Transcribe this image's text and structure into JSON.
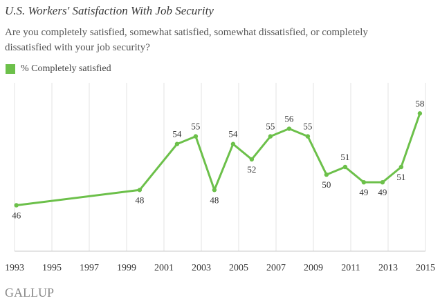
{
  "header": {
    "title": "U.S. Workers' Satisfaction With Job Security",
    "subtitle": "Are you completely satisfied, somewhat satisfied, somewhat dissatisfied, or completely dissatisfied with your job security?"
  },
  "legend": {
    "label": "% Completely satisfied",
    "color": "#6cc04a"
  },
  "footer": {
    "brand": "GALLUP"
  },
  "colors": {
    "line": "#6cc04a",
    "grid": "#e3e3e3",
    "axis": "#c8c8c8",
    "text": "#333333"
  },
  "chart_data": {
    "type": "line",
    "title": "U.S. Workers' Satisfaction With Job Security",
    "xlabel": "",
    "ylabel": "",
    "xlim": [
      1993,
      2015
    ],
    "ylim": [
      40,
      62
    ],
    "x_ticks": [
      "1993",
      "1995",
      "1997",
      "1999",
      "2001",
      "2003",
      "2005",
      "2007",
      "2009",
      "2011",
      "2013",
      "2015"
    ],
    "grid": "vertical",
    "legend_position": "top-left",
    "series": [
      {
        "name": "% Completely satisfied",
        "color": "#6cc04a",
        "points": [
          {
            "x": 1993.1,
            "y": 46,
            "label": "46",
            "pos": "below"
          },
          {
            "x": 1999.7,
            "y": 48,
            "label": "48",
            "pos": "below"
          },
          {
            "x": 2001.7,
            "y": 54,
            "label": "54",
            "pos": "above"
          },
          {
            "x": 2002.7,
            "y": 55,
            "label": "55",
            "pos": "above"
          },
          {
            "x": 2003.7,
            "y": 48,
            "label": "48",
            "pos": "below"
          },
          {
            "x": 2004.7,
            "y": 54,
            "label": "54",
            "pos": "above"
          },
          {
            "x": 2005.7,
            "y": 52,
            "label": "52",
            "pos": "below"
          },
          {
            "x": 2006.7,
            "y": 55,
            "label": "55",
            "pos": "above"
          },
          {
            "x": 2007.7,
            "y": 56,
            "label": "56",
            "pos": "above"
          },
          {
            "x": 2008.7,
            "y": 55,
            "label": "55",
            "pos": "above"
          },
          {
            "x": 2009.7,
            "y": 50,
            "label": "50",
            "pos": "below"
          },
          {
            "x": 2010.7,
            "y": 51,
            "label": "51",
            "pos": "above"
          },
          {
            "x": 2011.7,
            "y": 49,
            "label": "49",
            "pos": "below"
          },
          {
            "x": 2012.7,
            "y": 49,
            "label": "49",
            "pos": "below"
          },
          {
            "x": 2013.7,
            "y": 51,
            "label": "51",
            "pos": "below"
          },
          {
            "x": 2014.7,
            "y": 58,
            "label": "58",
            "pos": "above"
          }
        ]
      }
    ]
  }
}
